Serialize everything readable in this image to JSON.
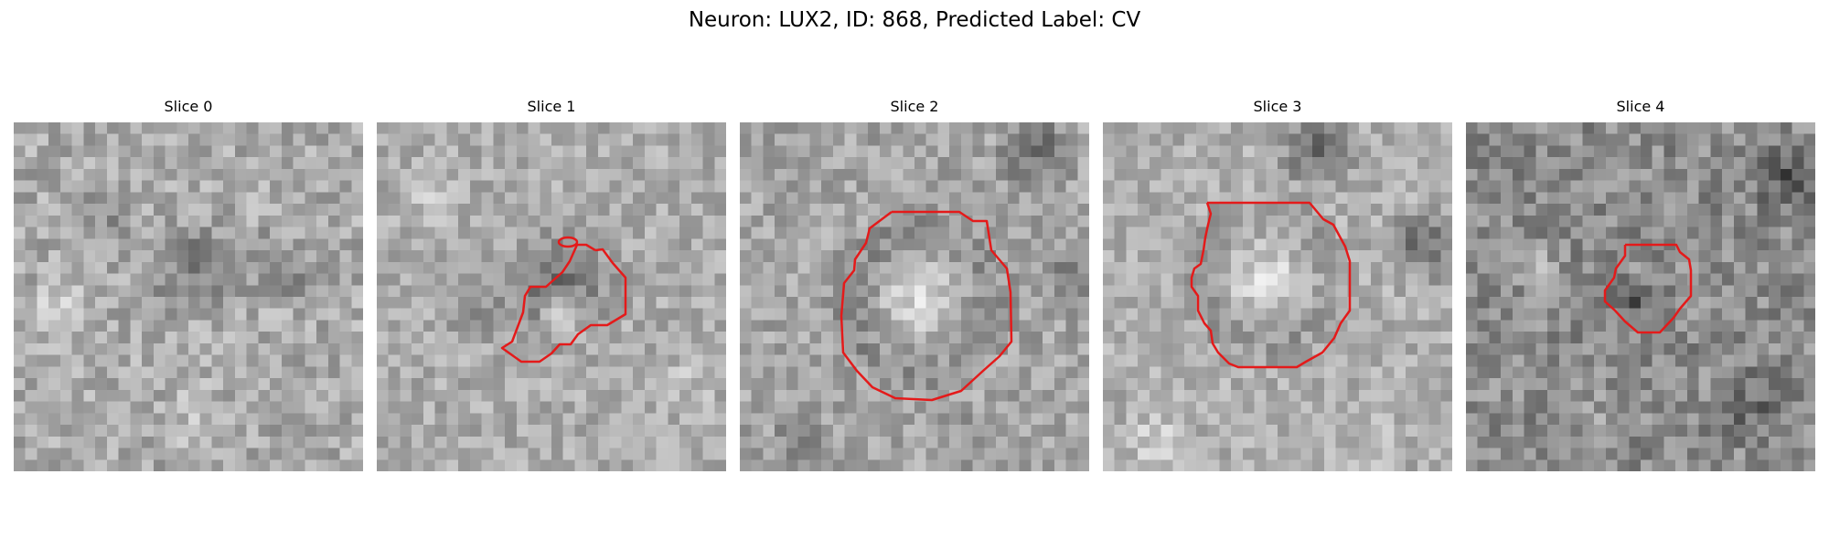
{
  "figure": {
    "title": "Neuron: LUX2, ID: 868, Predicted Label: CV"
  },
  "slices": [
    {
      "label": "Slice 0",
      "has_contour": false
    },
    {
      "label": "Slice 1",
      "has_contour": true
    },
    {
      "label": "Slice 2",
      "has_contour": true
    },
    {
      "label": "Slice 3",
      "has_contour": true
    },
    {
      "label": "Slice 4",
      "has_contour": true
    }
  ],
  "colors": {
    "contour": "#e41a1a",
    "colormap": "grayscale"
  }
}
